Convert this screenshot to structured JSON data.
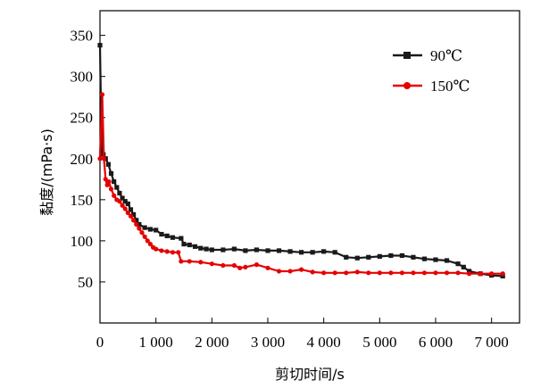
{
  "chart_data": {
    "type": "line",
    "title": "",
    "xlabel": "剪切时间/s",
    "ylabel": "黏度/(mPa·s)",
    "xlim": [
      0,
      7500
    ],
    "ylim": [
      0,
      380
    ],
    "xticks": [
      0,
      1000,
      2000,
      3000,
      4000,
      5000,
      6000,
      7000
    ],
    "xtick_labels": [
      "0",
      "1 000",
      "2 000",
      "3 000",
      "4 000",
      "5 000",
      "6 000",
      "7 000"
    ],
    "yticks": [
      50,
      100,
      150,
      200,
      250,
      300,
      350
    ],
    "ytick_labels": [
      "50",
      "100",
      "150",
      "200",
      "250",
      "300",
      "350"
    ],
    "grid": false,
    "legend": "top-right",
    "series": [
      {
        "name": "90℃",
        "color": "#1a1a1a",
        "marker": "square",
        "points": [
          [
            0,
            338
          ],
          [
            30,
            210
          ],
          [
            60,
            205
          ],
          [
            100,
            200
          ],
          [
            150,
            193
          ],
          [
            200,
            182
          ],
          [
            250,
            172
          ],
          [
            300,
            165
          ],
          [
            350,
            158
          ],
          [
            400,
            152
          ],
          [
            450,
            148
          ],
          [
            500,
            145
          ],
          [
            550,
            138
          ],
          [
            600,
            132
          ],
          [
            650,
            125
          ],
          [
            700,
            120
          ],
          [
            800,
            116
          ],
          [
            900,
            114
          ],
          [
            1000,
            113
          ],
          [
            1100,
            108
          ],
          [
            1200,
            106
          ],
          [
            1300,
            104
          ],
          [
            1450,
            103
          ],
          [
            1500,
            96
          ],
          [
            1600,
            95
          ],
          [
            1700,
            93
          ],
          [
            1800,
            91
          ],
          [
            1900,
            90
          ],
          [
            2000,
            89
          ],
          [
            2200,
            89
          ],
          [
            2400,
            90
          ],
          [
            2600,
            88
          ],
          [
            2800,
            89
          ],
          [
            3000,
            88
          ],
          [
            3200,
            88
          ],
          [
            3400,
            87
          ],
          [
            3600,
            86
          ],
          [
            3800,
            86
          ],
          [
            4000,
            87
          ],
          [
            4200,
            86
          ],
          [
            4400,
            80
          ],
          [
            4600,
            79
          ],
          [
            4800,
            80
          ],
          [
            5000,
            81
          ],
          [
            5200,
            82
          ],
          [
            5400,
            82
          ],
          [
            5600,
            80
          ],
          [
            5800,
            78
          ],
          [
            6000,
            77
          ],
          [
            6200,
            76
          ],
          [
            6400,
            72
          ],
          [
            6500,
            68
          ],
          [
            6600,
            63
          ],
          [
            6800,
            60
          ],
          [
            7000,
            58
          ],
          [
            7200,
            57
          ]
        ]
      },
      {
        "name": "150℃",
        "color": "#e60000",
        "marker": "circle",
        "points": [
          [
            0,
            200
          ],
          [
            40,
            278
          ],
          [
            70,
            200
          ],
          [
            100,
            175
          ],
          [
            130,
            168
          ],
          [
            160,
            172
          ],
          [
            200,
            163
          ],
          [
            250,
            155
          ],
          [
            300,
            150
          ],
          [
            350,
            148
          ],
          [
            400,
            143
          ],
          [
            450,
            139
          ],
          [
            500,
            134
          ],
          [
            550,
            130
          ],
          [
            600,
            125
          ],
          [
            650,
            120
          ],
          [
            700,
            115
          ],
          [
            750,
            110
          ],
          [
            800,
            105
          ],
          [
            850,
            100
          ],
          [
            900,
            96
          ],
          [
            950,
            92
          ],
          [
            1000,
            90
          ],
          [
            1100,
            88
          ],
          [
            1200,
            87
          ],
          [
            1300,
            86
          ],
          [
            1400,
            86
          ],
          [
            1450,
            75
          ],
          [
            1600,
            75
          ],
          [
            1800,
            74
          ],
          [
            2000,
            72
          ],
          [
            2200,
            70
          ],
          [
            2400,
            70
          ],
          [
            2500,
            67
          ],
          [
            2600,
            68
          ],
          [
            2800,
            71
          ],
          [
            3000,
            67
          ],
          [
            3200,
            63
          ],
          [
            3400,
            63
          ],
          [
            3600,
            65
          ],
          [
            3800,
            62
          ],
          [
            4000,
            61
          ],
          [
            4200,
            61
          ],
          [
            4400,
            61
          ],
          [
            4600,
            62
          ],
          [
            4800,
            61
          ],
          [
            5000,
            61
          ],
          [
            5200,
            61
          ],
          [
            5400,
            61
          ],
          [
            5600,
            61
          ],
          [
            5800,
            61
          ],
          [
            6000,
            61
          ],
          [
            6200,
            61
          ],
          [
            6400,
            61
          ],
          [
            6600,
            60
          ],
          [
            6800,
            60
          ],
          [
            7000,
            60
          ],
          [
            7200,
            60
          ]
        ]
      }
    ]
  }
}
